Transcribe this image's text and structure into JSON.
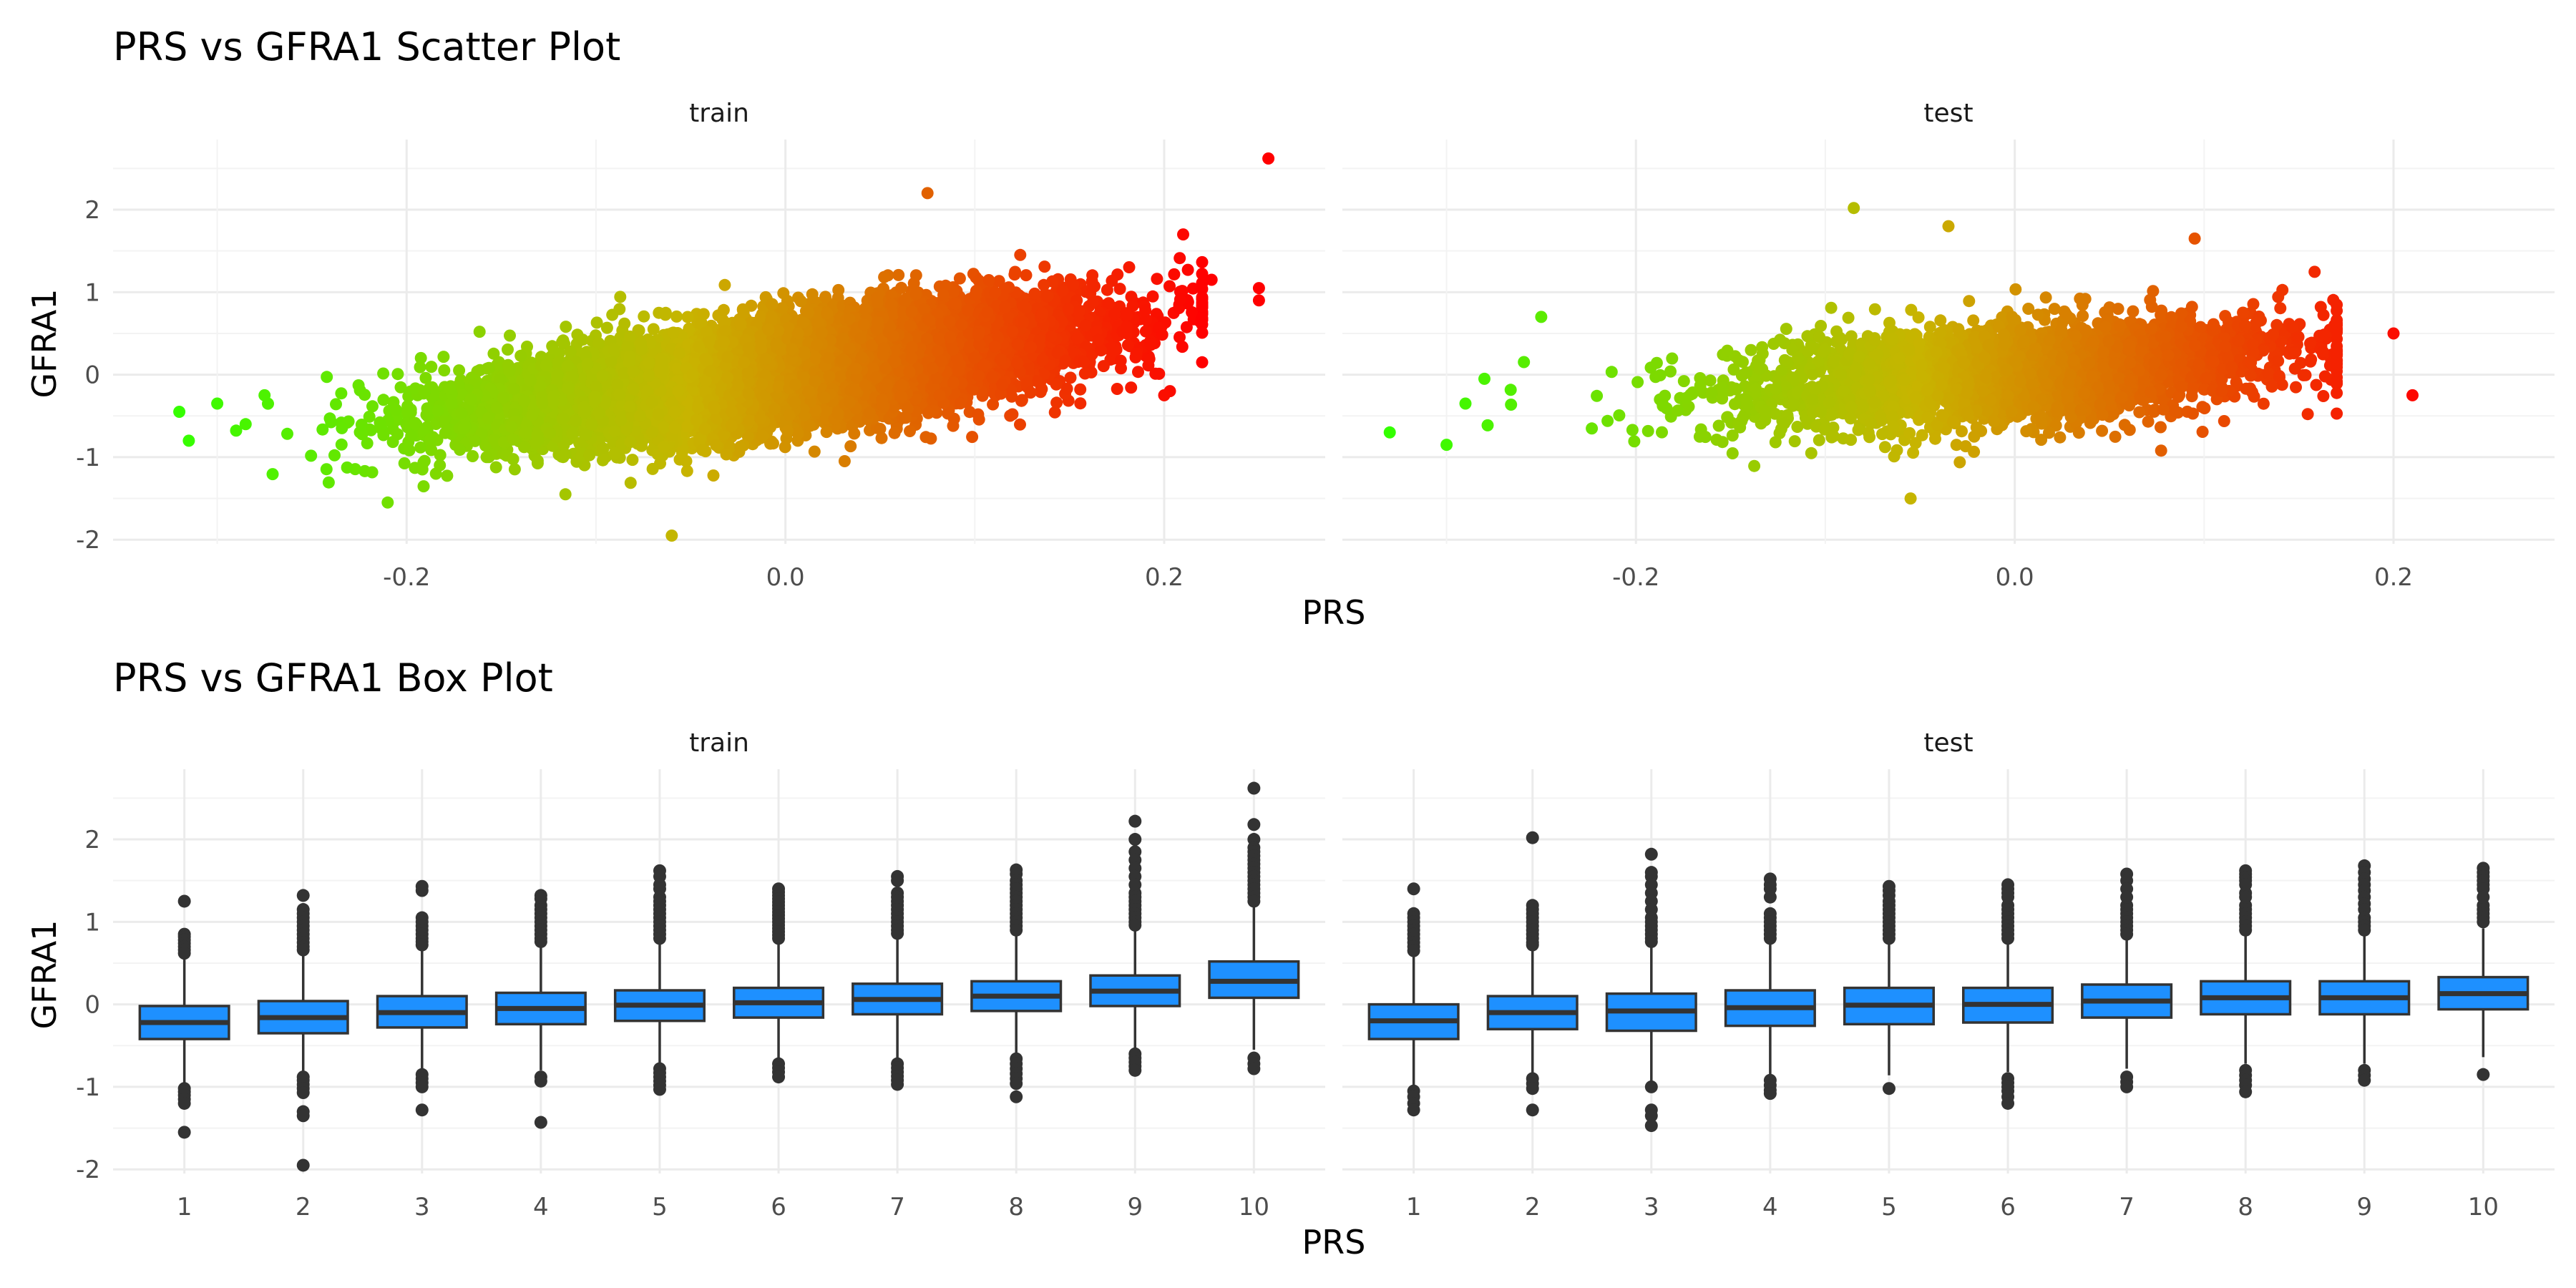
{
  "colors": {
    "low": "#33ff00",
    "mid": "#c8b400",
    "high": "#ff0000",
    "box_fill": "#1e90ff",
    "box_line": "#333333",
    "outlier": "#333333"
  },
  "chart_data": [
    {
      "type": "scatter",
      "title": "PRS vs GFRA1 Scatter Plot",
      "xlabel": "PRS",
      "ylabel": "GFRA1",
      "color_scale": "gradient green→yellow→red by PRS",
      "facets": [
        "train",
        "test"
      ],
      "x_ticks": [
        "-0.2",
        "0.0",
        "0.2"
      ],
      "y_ticks": [
        "-2",
        "-1",
        "0",
        "1",
        "2"
      ],
      "xlim": [
        -0.355,
        0.285
      ],
      "ylim": [
        -2.05,
        2.85
      ],
      "grid": true,
      "series": [
        {
          "facet": "train",
          "n_points_approx": 12000,
          "trend": {
            "slope": 3.0,
            "intercept": 0.05
          },
          "x_range": [
            -0.32,
            0.26
          ],
          "notable_points": [
            {
              "x": 0.255,
              "y": 2.62
            },
            {
              "x": 0.25,
              "y": 1.05
            },
            {
              "x": 0.25,
              "y": 0.9
            },
            {
              "x": 0.225,
              "y": 1.15
            },
            {
              "x": -0.32,
              "y": -0.45
            },
            {
              "x": -0.315,
              "y": -0.8
            },
            {
              "x": -0.3,
              "y": -0.35
            },
            {
              "x": -0.285,
              "y": -0.6
            },
            {
              "x": -0.275,
              "y": -0.25
            },
            {
              "x": -0.21,
              "y": -1.55
            },
            {
              "x": -0.06,
              "y": -1.95
            },
            {
              "x": 0.075,
              "y": 2.2
            },
            {
              "x": 0.21,
              "y": 1.7
            },
            {
              "x": 0.2,
              "y": -0.25
            },
            {
              "x": 0.22,
              "y": 0.15
            }
          ]
        },
        {
          "facet": "test",
          "n_points_approx": 3000,
          "trend": {
            "slope": 1.9,
            "intercept": 0.02
          },
          "x_range": [
            -0.33,
            0.21
          ],
          "notable_points": [
            {
              "x": -0.33,
              "y": -0.7
            },
            {
              "x": -0.3,
              "y": -0.85
            },
            {
              "x": -0.29,
              "y": -0.35
            },
            {
              "x": -0.28,
              "y": -0.05
            },
            {
              "x": -0.25,
              "y": 0.7
            },
            {
              "x": -0.085,
              "y": 2.02
            },
            {
              "x": -0.055,
              "y": -1.5
            },
            {
              "x": -0.035,
              "y": 1.8
            },
            {
              "x": 0.095,
              "y": 1.65
            },
            {
              "x": 0.2,
              "y": 0.5
            },
            {
              "x": 0.21,
              "y": -0.25
            }
          ]
        }
      ]
    },
    {
      "type": "box",
      "title": "PRS vs GFRA1 Box Plot",
      "xlabel": "PRS",
      "ylabel": "GFRA1",
      "facets": [
        "train",
        "test"
      ],
      "categories": [
        "1",
        "2",
        "3",
        "4",
        "5",
        "6",
        "7",
        "8",
        "9",
        "10"
      ],
      "y_ticks": [
        "-2",
        "-1",
        "0",
        "1",
        "2"
      ],
      "ylim": [
        -2.05,
        2.85
      ],
      "grid": true,
      "series": [
        {
          "facet": "train",
          "boxes": [
            {
              "q1": -0.42,
              "median": -0.22,
              "q3": -0.02,
              "low": -1.0,
              "high": 0.58,
              "outliers": [
                1.25,
                0.85,
                0.82,
                0.78,
                0.74,
                0.7,
                0.66,
                0.62,
                -1.02,
                -1.06,
                -1.1,
                -1.15,
                -1.2,
                -1.55
              ]
            },
            {
              "q1": -0.35,
              "median": -0.16,
              "q3": 0.04,
              "low": -0.9,
              "high": 0.6,
              "outliers": [
                1.32,
                1.15,
                1.1,
                1.05,
                1.0,
                0.95,
                0.9,
                0.85,
                0.8,
                0.75,
                0.7,
                0.66,
                -0.88,
                -0.92,
                -0.97,
                -1.02,
                -1.07,
                -1.3,
                -1.35,
                -1.95
              ]
            },
            {
              "q1": -0.28,
              "median": -0.1,
              "q3": 0.1,
              "low": -0.82,
              "high": 0.66,
              "outliers": [
                1.43,
                1.38,
                1.05,
                1.0,
                0.95,
                0.9,
                0.85,
                0.8,
                0.76,
                0.72,
                -0.85,
                -0.9,
                -0.95,
                -1.0,
                -1.28
              ]
            },
            {
              "q1": -0.24,
              "median": -0.05,
              "q3": 0.14,
              "low": -0.8,
              "high": 0.72,
              "outliers": [
                1.32,
                1.28,
                1.2,
                1.15,
                1.1,
                1.05,
                1.0,
                0.95,
                0.9,
                0.85,
                0.8,
                0.76,
                -0.88,
                -0.93,
                -1.43
              ]
            },
            {
              "q1": -0.2,
              "median": -0.01,
              "q3": 0.17,
              "low": -0.75,
              "high": 0.74,
              "outliers": [
                1.62,
                1.55,
                1.45,
                1.4,
                1.3,
                1.25,
                1.2,
                1.15,
                1.1,
                1.05,
                1.0,
                0.95,
                0.9,
                0.85,
                0.8,
                -0.78,
                -0.83,
                -0.88,
                -0.93,
                -0.98,
                -1.03
              ]
            },
            {
              "q1": -0.16,
              "median": 0.02,
              "q3": 0.2,
              "low": -0.7,
              "high": 0.76,
              "outliers": [
                1.4,
                1.36,
                1.32,
                1.28,
                1.24,
                1.2,
                1.16,
                1.12,
                1.08,
                1.04,
                1.0,
                0.96,
                0.92,
                0.88,
                0.84,
                0.8,
                -0.72,
                -0.77,
                -0.82,
                -0.88
              ]
            },
            {
              "q1": -0.12,
              "median": 0.06,
              "q3": 0.25,
              "low": -0.68,
              "high": 0.82,
              "outliers": [
                1.55,
                1.5,
                1.35,
                1.3,
                1.25,
                1.2,
                1.15,
                1.1,
                1.05,
                1.0,
                0.95,
                0.9,
                0.86,
                -0.72,
                -0.77,
                -0.82,
                -0.87,
                -0.92,
                -0.97
              ]
            },
            {
              "q1": -0.08,
              "median": 0.1,
              "q3": 0.28,
              "low": -0.62,
              "high": 0.84,
              "outliers": [
                1.63,
                1.58,
                1.5,
                1.45,
                1.4,
                1.35,
                1.3,
                1.25,
                1.2,
                1.15,
                1.1,
                1.05,
                1.0,
                0.95,
                0.9,
                -0.66,
                -0.72,
                -0.78,
                -0.84,
                -0.9,
                -0.96,
                -1.12
              ]
            },
            {
              "q1": -0.02,
              "median": 0.16,
              "q3": 0.35,
              "low": -0.58,
              "high": 0.92,
              "outliers": [
                2.22,
                2.0,
                1.85,
                1.75,
                1.65,
                1.55,
                1.45,
                1.35,
                1.3,
                1.25,
                1.2,
                1.15,
                1.1,
                1.05,
                1.0,
                0.96,
                -0.6,
                -0.65,
                -0.7,
                -0.75,
                -0.8
              ]
            },
            {
              "q1": 0.08,
              "median": 0.28,
              "q3": 0.52,
              "low": -0.55,
              "high": 1.18,
              "outliers": [
                2.62,
                2.18,
                2.0,
                1.9,
                1.85,
                1.8,
                1.75,
                1.7,
                1.65,
                1.6,
                1.55,
                1.5,
                1.45,
                1.4,
                1.35,
                1.3,
                1.25,
                -0.65,
                -0.72,
                -0.78
              ]
            }
          ]
        },
        {
          "facet": "test",
          "boxes": [
            {
              "q1": -0.42,
              "median": -0.2,
              "q3": 0.0,
              "low": -1.0,
              "high": 0.58,
              "outliers": [
                1.4,
                1.1,
                1.05,
                1.0,
                0.95,
                0.9,
                0.85,
                0.8,
                0.75,
                0.7,
                0.65,
                -1.05,
                -1.12,
                -1.2,
                -1.28
              ]
            },
            {
              "q1": -0.3,
              "median": -0.1,
              "q3": 0.1,
              "low": -0.85,
              "high": 0.68,
              "outliers": [
                2.02,
                1.2,
                1.15,
                1.1,
                1.05,
                1.0,
                0.95,
                0.9,
                0.85,
                0.8,
                0.75,
                0.72,
                -0.9,
                -0.96,
                -1.02,
                -1.28
              ]
            },
            {
              "q1": -0.32,
              "median": -0.08,
              "q3": 0.13,
              "low": -0.95,
              "high": 0.72,
              "outliers": [
                1.82,
                1.6,
                1.55,
                1.45,
                1.35,
                1.25,
                1.15,
                1.05,
                1.0,
                0.95,
                0.9,
                0.85,
                0.8,
                0.76,
                -1.0,
                -1.28,
                -1.35,
                -1.47
              ]
            },
            {
              "q1": -0.26,
              "median": -0.04,
              "q3": 0.17,
              "low": -0.88,
              "high": 0.74,
              "outliers": [
                1.52,
                1.45,
                1.4,
                1.3,
                1.1,
                1.05,
                1.0,
                0.95,
                0.9,
                0.85,
                0.8,
                -0.92,
                -0.98,
                -1.04,
                -1.08
              ]
            },
            {
              "q1": -0.24,
              "median": -0.01,
              "q3": 0.2,
              "low": -0.86,
              "high": 0.76,
              "outliers": [
                1.43,
                1.38,
                1.32,
                1.25,
                1.2,
                1.15,
                1.1,
                1.05,
                1.0,
                0.95,
                0.9,
                0.85,
                0.8,
                -1.02
              ]
            },
            {
              "q1": -0.22,
              "median": 0.0,
              "q3": 0.2,
              "low": -0.82,
              "high": 0.76,
              "outliers": [
                1.45,
                1.4,
                1.35,
                1.3,
                1.2,
                1.15,
                1.1,
                1.05,
                1.0,
                0.95,
                0.9,
                0.85,
                0.8,
                -0.9,
                -0.95,
                -1.0,
                -1.05,
                -1.12,
                -1.2
              ]
            },
            {
              "q1": -0.16,
              "median": 0.04,
              "q3": 0.24,
              "low": -0.78,
              "high": 0.8,
              "outliers": [
                1.58,
                1.5,
                1.4,
                1.3,
                1.2,
                1.15,
                1.1,
                1.05,
                1.0,
                0.95,
                0.9,
                0.85,
                -0.88,
                -0.94,
                -1.0
              ]
            },
            {
              "q1": -0.12,
              "median": 0.08,
              "q3": 0.28,
              "low": -0.72,
              "high": 0.84,
              "outliers": [
                1.62,
                1.58,
                1.54,
                1.5,
                1.45,
                1.35,
                1.3,
                1.2,
                1.15,
                1.1,
                1.05,
                1.0,
                0.95,
                0.9,
                -0.8,
                -0.86,
                -0.92,
                -0.98,
                -1.06
              ]
            },
            {
              "q1": -0.12,
              "median": 0.08,
              "q3": 0.28,
              "low": -0.72,
              "high": 0.84,
              "outliers": [
                1.68,
                1.6,
                1.52,
                1.45,
                1.38,
                1.3,
                1.22,
                1.15,
                1.05,
                1.0,
                0.95,
                0.9,
                -0.8,
                -0.86,
                -0.92
              ]
            },
            {
              "q1": -0.06,
              "median": 0.13,
              "q3": 0.33,
              "low": -0.64,
              "high": 0.92,
              "outliers": [
                1.65,
                1.6,
                1.55,
                1.5,
                1.45,
                1.4,
                1.3,
                1.2,
                1.15,
                1.1,
                1.05,
                1.0,
                -0.85
              ]
            }
          ]
        }
      ]
    }
  ]
}
